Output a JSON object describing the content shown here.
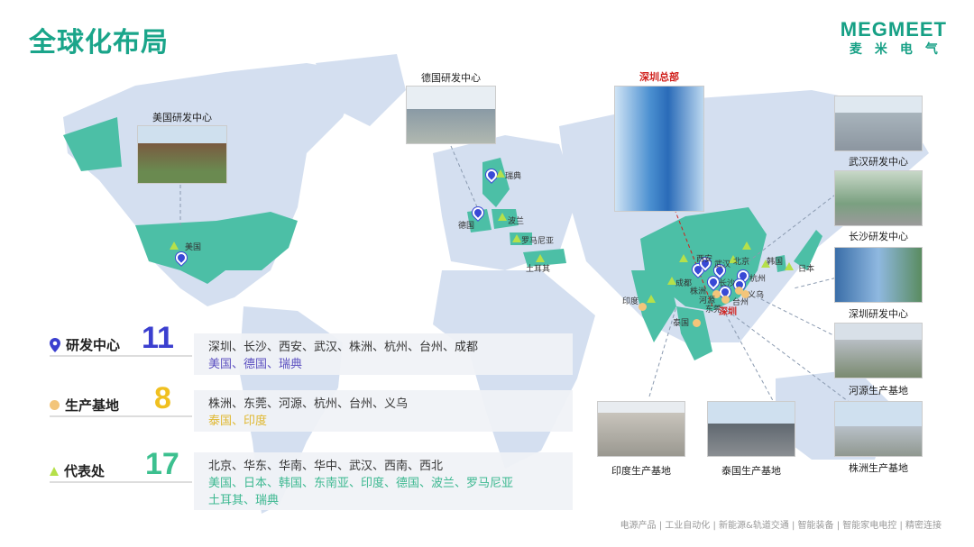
{
  "title": "全球化布局",
  "logo": {
    "en": "MEGMEET",
    "cn": "麦米电气"
  },
  "colors": {
    "accent": "#1aa58a",
    "rd": "#3949d6",
    "production": "#f3c57a",
    "office": "#b5e04a",
    "hq": "#d0201c",
    "land": "#d4dff0",
    "china": "#4cbfa6"
  },
  "photos": [
    "美国研发中心",
    "德国研发中心",
    "深圳总部",
    "武汉研发中心",
    "长沙研发中心",
    "深圳研发中心",
    "河源生产基地",
    "印度生产基地",
    "泰国生产基地",
    "株洲生产基地"
  ],
  "map_labels": [
    "美国",
    "瑞典",
    "德国",
    "波兰",
    "罗马尼亚",
    "土耳其",
    "西安",
    "武汉",
    "北京",
    "韩国",
    "日本",
    "杭州",
    "成都",
    "株洲",
    "长沙",
    "河源",
    "台州",
    "义乌",
    "东莞",
    "深圳",
    "印度",
    "泰国"
  ],
  "stats": [
    {
      "icon": "map-pin-icon",
      "label": "研发中心",
      "count": "11",
      "color": "#3b3fcf",
      "domestic": "深圳、长沙、西安、武汉、株洲、杭州、台州、成都",
      "overseas": "美国、德国、瑞典",
      "overseas_color": "#5b4fc0"
    },
    {
      "icon": "circle-icon",
      "label": "生产基地",
      "count": "8",
      "color": "#f0c020",
      "domestic": "株洲、东莞、河源、杭州、台州、义乌",
      "overseas": "泰国、印度",
      "overseas_color": "#e0b830"
    },
    {
      "icon": "triangle-icon",
      "label": "代表处",
      "count": "17",
      "color": "#3cc08f",
      "domestic": "北京、华东、华南、华中、武汉、西南、西北",
      "overseas": "美国、日本、韩国、东南亚、印度、德国、波兰、罗马尼亚",
      "overseas2": "土耳其、瑞典",
      "overseas_color": "#3cb890"
    }
  ],
  "footer": "电源产品 | 工业自动化 | 新能源&轨道交通 | 智能装备 | 智能家电电控 | 精密连接"
}
